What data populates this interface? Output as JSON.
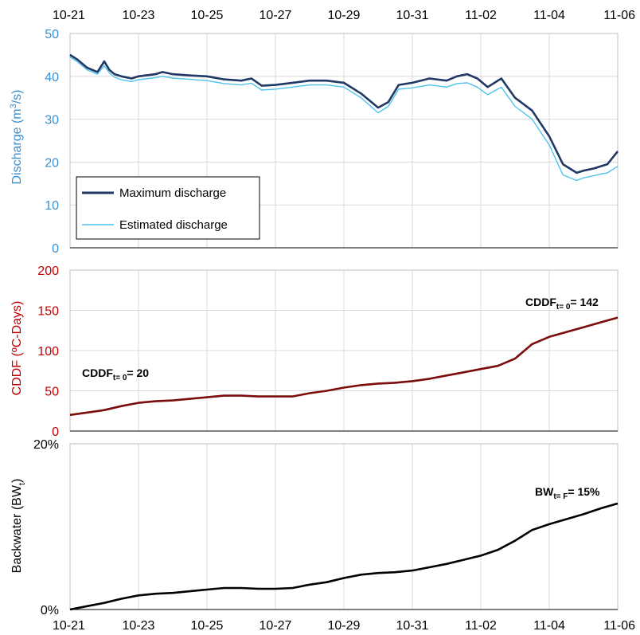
{
  "chart_data": [
    {
      "type": "line",
      "ylabel": "Discharge (m³/s)",
      "ylabel_main": "Discharge (m",
      "ylabel_sup": "3",
      "ylabel_tail": "/s)",
      "ylim": [
        0,
        50
      ],
      "yticks": [
        0,
        10,
        20,
        30,
        40,
        50
      ],
      "ytick_labels": [
        "0",
        "10",
        "20",
        "30",
        "40",
        "50"
      ],
      "axis_color": "#3a8fd0",
      "grid": true,
      "legend_position": "bottom-left",
      "series": [
        {
          "name": "Maximum discharge",
          "color": "#1f3864",
          "x": [
            0,
            0.2,
            0.5,
            0.8,
            1.0,
            1.15,
            1.3,
            1.5,
            1.8,
            2.0,
            2.3,
            2.5,
            2.7,
            3.0,
            3.5,
            4.0,
            4.5,
            5.0,
            5.3,
            5.6,
            6.0,
            6.5,
            7.0,
            7.5,
            8.0,
            8.5,
            9.0,
            9.3,
            9.6,
            10.0,
            10.5,
            11.0,
            11.3,
            11.6,
            11.9,
            12.2,
            12.6,
            13.0,
            13.5,
            14.0,
            14.4,
            14.8,
            15.0,
            15.3,
            15.5,
            15.7,
            16.0
          ],
          "values": [
            45,
            44,
            42,
            41,
            43.5,
            41.5,
            40.5,
            40,
            39.5,
            40,
            40.3,
            40.5,
            41,
            40.5,
            40.2,
            40,
            39.3,
            39,
            39.5,
            37.8,
            38,
            38.5,
            39,
            39,
            38.5,
            36,
            32.7,
            34,
            38,
            38.5,
            39.5,
            39,
            40,
            40.5,
            39.5,
            37.5,
            39.5,
            35,
            32,
            26,
            19.5,
            17.5,
            18,
            18.5,
            19,
            19.5,
            22.5
          ]
        },
        {
          "name": "Estimated discharge",
          "color": "#4ec3ec",
          "x": [
            0,
            0.2,
            0.5,
            0.8,
            1.0,
            1.15,
            1.3,
            1.5,
            1.8,
            2.0,
            2.3,
            2.5,
            2.7,
            3.0,
            3.5,
            4.0,
            4.5,
            5.0,
            5.3,
            5.6,
            6.0,
            6.5,
            7.0,
            7.5,
            8.0,
            8.5,
            9.0,
            9.3,
            9.6,
            10.0,
            10.5,
            11.0,
            11.3,
            11.6,
            11.9,
            12.2,
            12.6,
            13.0,
            13.5,
            14.0,
            14.4,
            14.8,
            15.0,
            15.3,
            15.5,
            15.7,
            16.0
          ],
          "values": [
            44.5,
            43.5,
            41.5,
            40.5,
            42.5,
            40.8,
            39.8,
            39.2,
            38.8,
            39.2,
            39.5,
            39.7,
            40,
            39.6,
            39.3,
            39,
            38.3,
            38,
            38.4,
            36.8,
            37,
            37.5,
            38,
            38,
            37.5,
            35,
            31.5,
            33,
            37,
            37.3,
            38,
            37.5,
            38.3,
            38.5,
            37.5,
            35.7,
            37.5,
            33,
            30,
            24,
            17,
            15.7,
            16.3,
            16.8,
            17.2,
            17.5,
            19
          ]
        }
      ]
    },
    {
      "type": "line",
      "ylabel": "CDDF (ºC-Days)",
      "ylim": [
        0,
        200
      ],
      "yticks": [
        0,
        50,
        100,
        150,
        200
      ],
      "ytick_labels": [
        "0",
        "50",
        "100",
        "150",
        "200"
      ],
      "axis_color": "#c00000",
      "grid": true,
      "series": [
        {
          "color": "#7b0c0c",
          "x": [
            0,
            0.5,
            1.0,
            1.5,
            2.0,
            2.5,
            3.0,
            3.5,
            4.0,
            4.5,
            5.0,
            5.5,
            6.0,
            6.5,
            7.0,
            7.5,
            8.0,
            8.5,
            9.0,
            9.5,
            10.0,
            10.5,
            11.0,
            11.5,
            12.0,
            12.5,
            13.0,
            13.5,
            14.0,
            14.5,
            15.0,
            15.5,
            16.0
          ],
          "values": [
            20,
            23,
            26,
            31,
            35,
            37,
            38,
            40,
            42,
            44,
            44,
            43,
            43,
            43,
            47,
            50,
            54,
            57,
            59,
            60,
            62,
            65,
            69,
            73,
            77,
            81,
            90,
            108,
            117,
            123,
            129,
            135,
            141
          ]
        }
      ],
      "annotations": [
        {
          "base": "CDDF",
          "sub": "t= 0",
          "text": "= 20"
        },
        {
          "base": "CDDF",
          "sub": "t= 0",
          "text": "= 142"
        }
      ]
    },
    {
      "type": "line",
      "ylabel": "Backwater (BW",
      "ylabel_sub": "t",
      "ylabel_tail": ")",
      "ylim": [
        0,
        20
      ],
      "yticks": [
        0,
        20
      ],
      "ytick_labels": [
        "0%",
        "20%"
      ],
      "axis_color": "#000000",
      "grid": true,
      "series": [
        {
          "color": "#000000",
          "x": [
            0,
            0.5,
            1.0,
            1.5,
            2.0,
            2.5,
            3.0,
            3.5,
            4.0,
            4.5,
            5.0,
            5.5,
            6.0,
            6.5,
            7.0,
            7.5,
            8.0,
            8.5,
            9.0,
            9.5,
            10.0,
            10.5,
            11.0,
            11.5,
            12.0,
            12.5,
            13.0,
            13.5,
            14.0,
            14.5,
            15.0,
            15.5,
            16.0
          ],
          "values": [
            0.0,
            0.4,
            0.8,
            1.3,
            1.7,
            1.9,
            2.0,
            2.2,
            2.4,
            2.6,
            2.6,
            2.5,
            2.5,
            2.6,
            3.0,
            3.3,
            3.8,
            4.2,
            4.4,
            4.5,
            4.7,
            5.1,
            5.5,
            6.0,
            6.5,
            7.2,
            8.3,
            9.6,
            10.3,
            10.9,
            11.5,
            12.2,
            12.8
          ]
        }
      ],
      "annotations": [
        {
          "base": "BW",
          "sub": "t= F",
          "text": "= 15%"
        }
      ]
    }
  ],
  "x_axis": {
    "tick_labels": [
      "10-21",
      "10-23",
      "10-25",
      "10-27",
      "10-29",
      "10-31",
      "11-02",
      "11-04",
      "11-06"
    ]
  }
}
